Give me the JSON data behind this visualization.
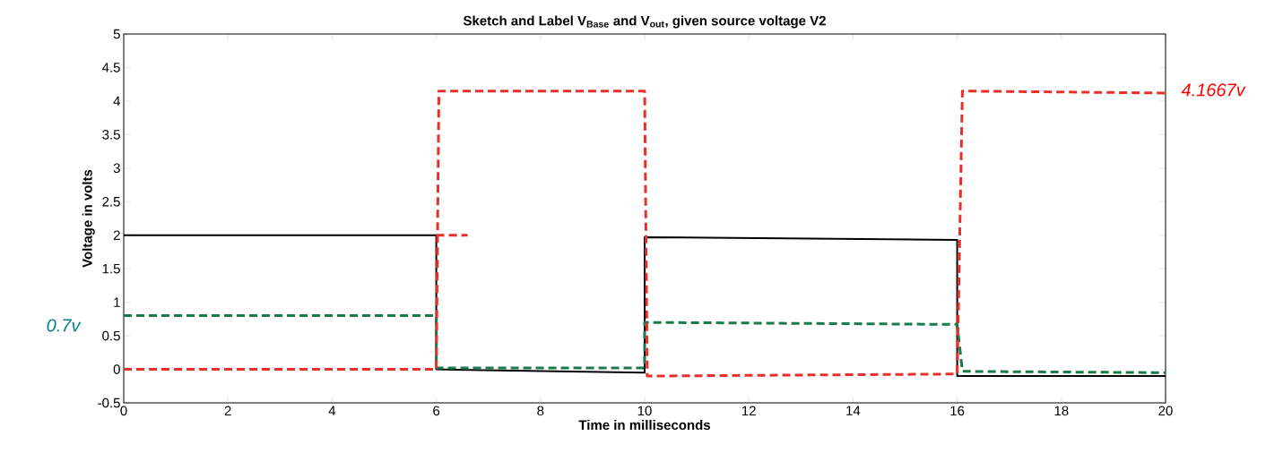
{
  "chart_data": {
    "type": "line",
    "title": "Sketch and Label V$_{Base}$ and V$_{out}$, given source voltage V2",
    "xlabel": "Time in milliseconds",
    "ylabel": "Voltage in volts",
    "xlim": [
      0,
      20
    ],
    "xticks": [
      0,
      2,
      4,
      6,
      8,
      10,
      12,
      14,
      16,
      18,
      20
    ],
    "ylim": [
      -0.5,
      5
    ],
    "yticks": [
      -0.5,
      0,
      0.5,
      1,
      1.5,
      2,
      2.5,
      3,
      3.5,
      4,
      4.5,
      5
    ],
    "marker": "none",
    "series": [
      {
        "color": "#000000",
        "line_style": "solid",
        "x": [
          0,
          6,
          6,
          10,
          10,
          16,
          16,
          20
        ],
        "values": [
          2,
          2,
          0,
          -0.05,
          1.97,
          1.93,
          -0.1,
          -0.1
        ]
      },
      {
        "color": "#1a7a4a",
        "line_style": "dashed",
        "x": [
          0,
          6,
          6,
          10,
          10,
          16,
          16.1,
          20
        ],
        "values": [
          0.8,
          0.8,
          0.02,
          0.02,
          0.7,
          0.67,
          -0.03,
          -0.05
        ]
      },
      {
        "color": "#e8302a",
        "line_style": "dashed",
        "x": [
          0,
          6,
          6.05,
          10,
          10.05,
          16,
          16.1,
          20
        ],
        "values": [
          0,
          0,
          4.15,
          4.15,
          -0.1,
          -0.07,
          4.15,
          4.12
        ]
      },
      {
        "color": "#e8302a",
        "line_style": "dashed",
        "x": [
          6,
          6.6
        ],
        "values": [
          2,
          2
        ]
      }
    ],
    "annotations": [
      "0.7v",
      {
        "text": "4.1667v",
        "x": 20,
        "y": 4.1667
      }
    ]
  }
}
